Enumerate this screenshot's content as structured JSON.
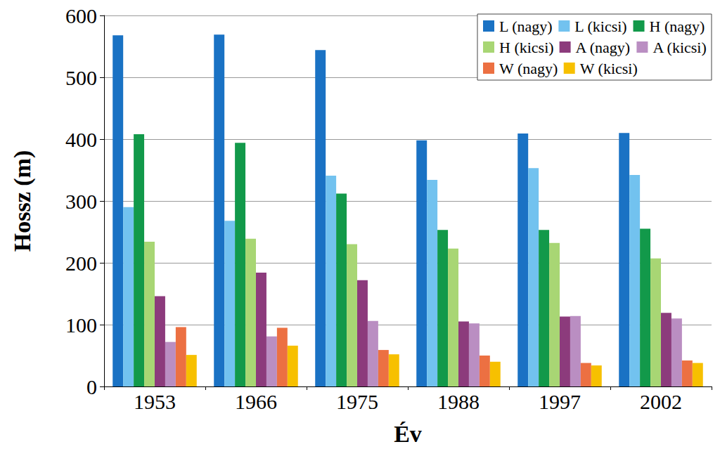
{
  "chart_data": {
    "type": "bar",
    "x_label": "Év",
    "y_label": "Hossz (m)",
    "categories": [
      "1953",
      "1966",
      "1975",
      "1988",
      "1997",
      "2002"
    ],
    "series": [
      {
        "name": "L (nagy)",
        "color": "#1a72c4",
        "values": [
          568,
          569,
          544,
          398,
          409,
          410
        ]
      },
      {
        "name": "L (kicsi)",
        "color": "#72c2ef",
        "values": [
          290,
          268,
          341,
          334,
          353,
          342
        ]
      },
      {
        "name": "H (nagy)",
        "color": "#12994a",
        "values": [
          408,
          394,
          312,
          253,
          253,
          255
        ]
      },
      {
        "name": "H (kicsi)",
        "color": "#a8d674",
        "values": [
          234,
          239,
          230,
          223,
          232,
          207
        ]
      },
      {
        "name": "A (nagy)",
        "color": "#8c3b7c",
        "values": [
          146,
          184,
          172,
          105,
          113,
          119
        ]
      },
      {
        "name": "A (kicsi)",
        "color": "#ba8ec2",
        "values": [
          72,
          81,
          106,
          102,
          114,
          110
        ]
      },
      {
        "name": "W (nagy)",
        "color": "#ec7042",
        "values": [
          96,
          95,
          59,
          50,
          38,
          42
        ]
      },
      {
        "name": "W (kicsi)",
        "color": "#f7c000",
        "values": [
          51,
          66,
          52,
          40,
          34,
          38
        ]
      }
    ],
    "ylim": [
      0,
      600
    ],
    "yticks": [
      0,
      100,
      200,
      300,
      400,
      500,
      600
    ],
    "grid": true,
    "legend": "top-right"
  }
}
